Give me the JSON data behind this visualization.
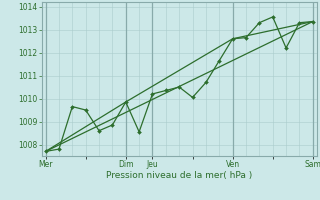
{
  "title": "",
  "xlabel": "Pression niveau de la mer( hPa )",
  "ylabel": "",
  "bg_color": "#cce8e8",
  "grid_color": "#aacccc",
  "line_color": "#2d6e2d",
  "border_color": "#88aaaa",
  "ylim": [
    1007.5,
    1014.2
  ],
  "yticks": [
    1008,
    1009,
    1010,
    1011,
    1012,
    1013,
    1014
  ],
  "xtick_labels": [
    "Mer",
    "",
    "Dim",
    "Jeu",
    "",
    "Ven",
    "",
    "Sam"
  ],
  "xtick_positions": [
    0,
    3,
    6,
    8,
    11,
    14,
    17,
    20
  ],
  "vline_major": [
    0,
    6,
    8,
    14,
    20
  ],
  "vline_minor_count": 21,
  "series1_x": [
    0,
    1,
    2,
    3,
    4,
    5,
    6,
    7,
    8,
    9,
    10,
    11,
    12,
    13,
    14,
    15,
    16,
    17,
    18,
    19,
    20
  ],
  "series1_y": [
    1007.7,
    1007.8,
    1009.65,
    1009.5,
    1008.6,
    1008.85,
    1009.85,
    1008.55,
    1010.2,
    1010.35,
    1010.5,
    1010.05,
    1010.7,
    1011.65,
    1012.6,
    1012.65,
    1013.3,
    1013.55,
    1012.2,
    1013.3,
    1013.35
  ],
  "series2_x": [
    0,
    20
  ],
  "series2_y": [
    1007.7,
    1013.35
  ],
  "series3_x": [
    0,
    6,
    14,
    20
  ],
  "series3_y": [
    1007.7,
    1009.85,
    1012.6,
    1013.35
  ],
  "xlim": [
    -0.3,
    20.3
  ],
  "marker_size": 2.0,
  "linewidth": 0.9,
  "tick_fontsize": 5.5,
  "xlabel_fontsize": 6.5
}
